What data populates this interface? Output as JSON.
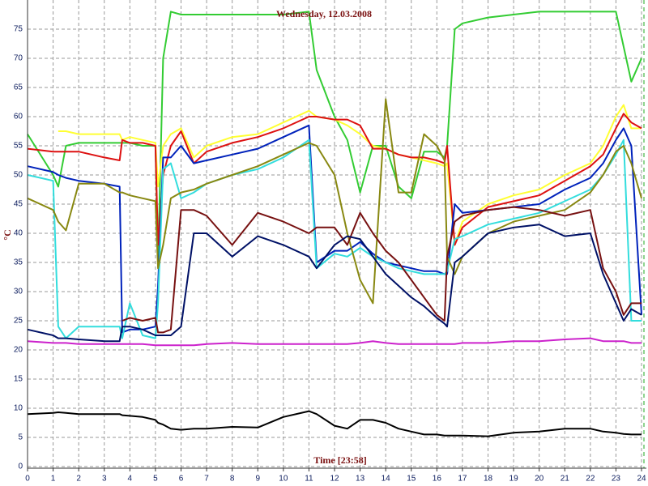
{
  "chart_data": {
    "type": "line",
    "title": "Wednesday, 12.03.2008",
    "x_label": "Time [23:58]",
    "y_label": "°C",
    "x": [
      0,
      1,
      1.2,
      1.5,
      2,
      3,
      3.6,
      3.7,
      4,
      4.5,
      5,
      5.1,
      5.3,
      5.6,
      6,
      6.5,
      7,
      8,
      9,
      10,
      11,
      11.3,
      12,
      12.5,
      13,
      13.5,
      14,
      14.5,
      15,
      15.5,
      16,
      16.3,
      16.4,
      16.7,
      17,
      18,
      19,
      20,
      21,
      22,
      22.5,
      23,
      23.3,
      23.6,
      24
    ],
    "xlim": [
      0,
      24
    ],
    "xticks": [
      0,
      1,
      2,
      3,
      4,
      5,
      6,
      7,
      8,
      9,
      10,
      11,
      12,
      13,
      14,
      15,
      16,
      17,
      18,
      19,
      20,
      21,
      22,
      23,
      24
    ],
    "ylim": [
      0,
      80
    ],
    "yticks": [
      0,
      5,
      10,
      15,
      20,
      25,
      30,
      35,
      40,
      45,
      50,
      55,
      60,
      65,
      70,
      75
    ],
    "grid": true,
    "series": [
      {
        "color": "#33cc33",
        "values": [
          57,
          50,
          48,
          55,
          55.5,
          55.5,
          55.5,
          55.5,
          55.5,
          55,
          55,
          35,
          70,
          78,
          77.5,
          77.5,
          77.5,
          77.5,
          77.5,
          77.5,
          78,
          68,
          60,
          56,
          47,
          55,
          55,
          48,
          46,
          54,
          54,
          53,
          55,
          75,
          76,
          77,
          77.5,
          78,
          78,
          78,
          78,
          78,
          72,
          66,
          70
        ]
      },
      {
        "color": "#ffff33",
        "values": [
          null,
          null,
          57.5,
          57.5,
          57,
          57,
          57,
          56,
          56.5,
          56,
          55.5,
          48,
          55,
          57,
          58,
          53,
          55,
          56.5,
          57,
          59,
          61,
          60,
          59.5,
          58.5,
          57,
          55,
          54.5,
          53.5,
          53,
          52.5,
          52,
          51.5,
          52,
          38,
          42,
          45,
          46.5,
          47.5,
          50,
          52,
          55,
          60,
          62,
          58,
          58
        ]
      },
      {
        "color": "#dd1111",
        "values": [
          54.5,
          54,
          54,
          54,
          54,
          53,
          52.5,
          56,
          55.5,
          55.5,
          55,
          38,
          50,
          55,
          57.5,
          52,
          54,
          55.5,
          56.5,
          58,
          60,
          60,
          59.5,
          59.5,
          58.5,
          54.5,
          54.5,
          53.5,
          53,
          53,
          52.5,
          52,
          55,
          38,
          41,
          44.5,
          45.5,
          46.5,
          49,
          51.5,
          53.5,
          58,
          60.5,
          59,
          58
        ]
      },
      {
        "color": "#0022bb",
        "values": [
          51.5,
          50.5,
          50,
          49.5,
          49,
          48.5,
          48,
          23,
          23.5,
          23.5,
          24,
          31,
          53,
          53,
          55,
          52,
          52.5,
          53.5,
          54.5,
          56.5,
          58.5,
          35,
          37,
          37,
          38.5,
          36.5,
          35,
          34.5,
          34,
          33.5,
          33.5,
          33,
          33,
          45,
          43.5,
          44,
          44.5,
          45,
          47.5,
          49.5,
          52,
          56,
          58,
          55,
          26
        ]
      },
      {
        "color": "#33dddd",
        "values": [
          50,
          49,
          24,
          22,
          24,
          24,
          24,
          22,
          28,
          22.5,
          22,
          28,
          51,
          52,
          46,
          47,
          48.5,
          50,
          51,
          53,
          56,
          34,
          36.5,
          36,
          37.5,
          36,
          35,
          34,
          33.5,
          33,
          33,
          33,
          33.5,
          39,
          39.5,
          41.5,
          42.5,
          43.5,
          45.5,
          47.5,
          50,
          53.5,
          56,
          25,
          25
        ]
      },
      {
        "color": "#888811",
        "values": [
          46,
          44,
          42,
          40.5,
          48.5,
          48.5,
          47,
          47,
          46.5,
          46,
          45.5,
          34,
          38,
          46,
          47,
          47.5,
          48.5,
          50,
          51.5,
          53.5,
          55.5,
          55,
          50,
          40,
          32,
          28,
          63,
          47,
          47,
          57,
          55,
          52.5,
          36,
          33,
          36,
          40,
          42,
          43,
          44,
          47,
          50,
          54,
          55,
          52,
          46
        ]
      },
      {
        "color": "#771111",
        "values": [
          null,
          null,
          null,
          null,
          null,
          null,
          null,
          25,
          25.5,
          25,
          25.5,
          23,
          23,
          23.5,
          44,
          44,
          43,
          38,
          43.5,
          42,
          40,
          41,
          41,
          38,
          43.5,
          40,
          37,
          35,
          32,
          29,
          26,
          25,
          36,
          42,
          43,
          44,
          44.5,
          44,
          43,
          44,
          34,
          30,
          26,
          28,
          28
        ]
      },
      {
        "color": "#001166",
        "values": [
          23.5,
          22.5,
          22,
          22,
          21.8,
          21.5,
          21.5,
          24,
          24,
          23.5,
          22.5,
          22.5,
          22.5,
          22.5,
          24,
          40,
          40,
          36,
          39.5,
          38,
          36,
          34,
          38,
          39.5,
          39,
          36,
          33,
          31,
          29,
          27.5,
          25.5,
          24.5,
          24,
          35,
          36,
          40,
          41,
          41.5,
          39.5,
          40,
          33,
          28,
          25,
          27,
          26
        ]
      },
      {
        "color": "#cc22cc",
        "values": [
          21.5,
          21.2,
          21.2,
          21.2,
          21,
          21,
          21,
          21,
          21,
          21,
          20.8,
          20.8,
          20.8,
          20.8,
          20.8,
          20.8,
          21,
          21.2,
          21,
          21,
          21,
          21,
          21,
          21,
          21.2,
          21.5,
          21.2,
          21,
          21,
          21,
          21,
          21,
          21,
          21,
          21.2,
          21.2,
          21.5,
          21.5,
          21.8,
          22,
          21.5,
          21.5,
          21.5,
          21.2,
          21.2
        ]
      },
      {
        "color": "#000000",
        "values": [
          9,
          9.2,
          9.3,
          9.2,
          9,
          9,
          9,
          8.8,
          8.7,
          8.5,
          8,
          7.5,
          7.2,
          6.5,
          6.3,
          6.5,
          6.5,
          6.8,
          6.7,
          8.5,
          9.5,
          9,
          7,
          6.5,
          8,
          8,
          7.5,
          6.5,
          6,
          5.5,
          5.5,
          5.3,
          5.3,
          5.3,
          5.3,
          5.2,
          5.8,
          6,
          6.5,
          6.5,
          6,
          5.8,
          5.6,
          5.5,
          5.5
        ]
      }
    ]
  }
}
